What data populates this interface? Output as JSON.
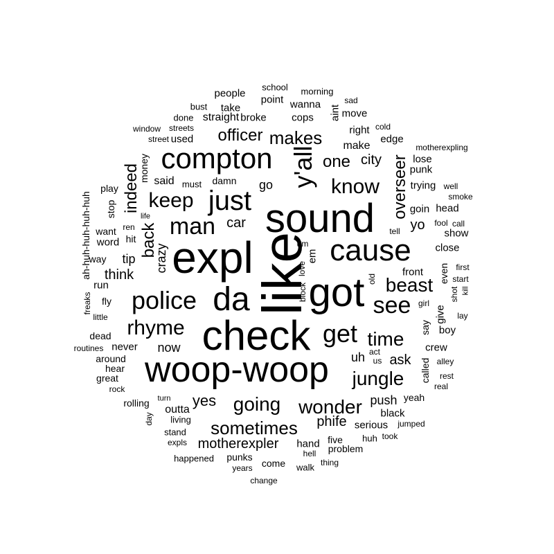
{
  "text_color": "#000000",
  "background_color": "#ffffff",
  "words": [
    {
      "text": "like",
      "rotated": true
    },
    {
      "text": "expl",
      "rotated": false
    },
    {
      "text": "sound",
      "rotated": false
    },
    {
      "text": "check",
      "rotated": false
    },
    {
      "text": "woop-woop",
      "rotated": false
    },
    {
      "text": "got",
      "rotated": false
    },
    {
      "text": "da",
      "rotated": false
    },
    {
      "text": "cause",
      "rotated": false
    },
    {
      "text": "compton",
      "rotated": false
    },
    {
      "text": "y'all",
      "rotated": true
    },
    {
      "text": "police",
      "rotated": false
    },
    {
      "text": "just",
      "rotated": false
    },
    {
      "text": "man",
      "rotated": false
    },
    {
      "text": "get",
      "rotated": false
    },
    {
      "text": "see",
      "rotated": false
    },
    {
      "text": "know",
      "rotated": false
    },
    {
      "text": "rhyme",
      "rotated": false
    },
    {
      "text": "keep",
      "rotated": false
    },
    {
      "text": "beast",
      "rotated": false
    },
    {
      "text": "time",
      "rotated": false
    },
    {
      "text": "jungle",
      "rotated": false
    },
    {
      "text": "wonder",
      "rotated": false
    },
    {
      "text": "going",
      "rotated": false
    },
    {
      "text": "sometimes",
      "rotated": false
    },
    {
      "text": "makes",
      "rotated": false
    },
    {
      "text": "officer",
      "rotated": false
    },
    {
      "text": "one",
      "rotated": false
    },
    {
      "text": "overseer",
      "rotated": true
    },
    {
      "text": "back",
      "rotated": true
    },
    {
      "text": "indeed",
      "rotated": true
    },
    {
      "text": "yes",
      "rotated": false
    },
    {
      "text": "motherexpler",
      "rotated": false
    },
    {
      "text": "phife",
      "rotated": false
    },
    {
      "text": "city",
      "rotated": false
    },
    {
      "text": "car",
      "rotated": false
    },
    {
      "text": "ask",
      "rotated": false
    },
    {
      "text": "yo",
      "rotated": false
    },
    {
      "text": "push",
      "rotated": false
    },
    {
      "text": "think",
      "rotated": false
    },
    {
      "text": "tip",
      "rotated": false
    },
    {
      "text": "crazy",
      "rotated": true
    },
    {
      "text": "uh",
      "rotated": false
    },
    {
      "text": "now",
      "rotated": false
    },
    {
      "text": "outta",
      "rotated": false
    },
    {
      "text": "go",
      "rotated": false
    },
    {
      "text": "said",
      "rotated": false
    },
    {
      "text": "make",
      "rotated": false
    },
    {
      "text": "straight",
      "rotated": false
    },
    {
      "text": "people",
      "rotated": false
    },
    {
      "text": "take",
      "rotated": false
    },
    {
      "text": "wanna",
      "rotated": false
    },
    {
      "text": "broke",
      "rotated": false
    },
    {
      "text": "cops",
      "rotated": false
    },
    {
      "text": "point",
      "rotated": false
    },
    {
      "text": "move",
      "rotated": false
    },
    {
      "text": "right",
      "rotated": false
    },
    {
      "text": "edge",
      "rotated": false
    },
    {
      "text": "used",
      "rotated": false
    },
    {
      "text": "aint",
      "rotated": true
    },
    {
      "text": "lose",
      "rotated": false
    },
    {
      "text": "punk",
      "rotated": false
    },
    {
      "text": "trying",
      "rotated": false
    },
    {
      "text": "goin",
      "rotated": false
    },
    {
      "text": "head",
      "rotated": false
    },
    {
      "text": "close",
      "rotated": false
    },
    {
      "text": "show",
      "rotated": false
    },
    {
      "text": "em",
      "rotated": true
    },
    {
      "text": "front",
      "rotated": false
    },
    {
      "text": "even",
      "rotated": true
    },
    {
      "text": "say",
      "rotated": true
    },
    {
      "text": "give",
      "rotated": true
    },
    {
      "text": "boy",
      "rotated": false
    },
    {
      "text": "crew",
      "rotated": false
    },
    {
      "text": "called",
      "rotated": true
    },
    {
      "text": "yeah",
      "rotated": false
    },
    {
      "text": "black",
      "rotated": false
    },
    {
      "text": "serious",
      "rotated": false
    },
    {
      "text": "five",
      "rotated": false
    },
    {
      "text": "hand",
      "rotated": false
    },
    {
      "text": "never",
      "rotated": false
    },
    {
      "text": "damn",
      "rotated": false
    },
    {
      "text": "fly",
      "rotated": false
    },
    {
      "text": "run",
      "rotated": false
    },
    {
      "text": "word",
      "rotated": false
    },
    {
      "text": "want",
      "rotated": false
    },
    {
      "text": "hit",
      "rotated": false
    },
    {
      "text": "way",
      "rotated": false
    },
    {
      "text": "stop",
      "rotated": true
    },
    {
      "text": "play",
      "rotated": false
    },
    {
      "text": "money",
      "rotated": true
    },
    {
      "text": "must",
      "rotated": false
    },
    {
      "text": "dead",
      "rotated": false
    },
    {
      "text": "hear",
      "rotated": false
    },
    {
      "text": "around",
      "rotated": false
    },
    {
      "text": "great",
      "rotated": false
    },
    {
      "text": "rolling",
      "rotated": false
    },
    {
      "text": "living",
      "rotated": false
    },
    {
      "text": "stand",
      "rotated": false
    },
    {
      "text": "problem",
      "rotated": false
    },
    {
      "text": "huh",
      "rotated": false
    },
    {
      "text": "punks",
      "rotated": false
    },
    {
      "text": "come",
      "rotated": false
    },
    {
      "text": "hell",
      "rotated": false
    },
    {
      "text": "ah-huh-huh-huh-huh",
      "rotated": true
    },
    {
      "text": "school",
      "rotated": false
    },
    {
      "text": "morning",
      "rotated": false
    },
    {
      "text": "sad",
      "rotated": false
    },
    {
      "text": "bust",
      "rotated": false
    },
    {
      "text": "done",
      "rotated": false
    },
    {
      "text": "streets",
      "rotated": false
    },
    {
      "text": "window",
      "rotated": false
    },
    {
      "text": "street",
      "rotated": false
    },
    {
      "text": "cold",
      "rotated": false
    },
    {
      "text": "motherexpling",
      "rotated": false
    },
    {
      "text": "well",
      "rotated": false
    },
    {
      "text": "smoke",
      "rotated": false
    },
    {
      "text": "fool",
      "rotated": false
    },
    {
      "text": "call",
      "rotated": false
    },
    {
      "text": "tell",
      "rotated": false
    },
    {
      "text": "first",
      "rotated": false
    },
    {
      "text": "start",
      "rotated": false
    },
    {
      "text": "shot",
      "rotated": true
    },
    {
      "text": "kill",
      "rotated": true
    },
    {
      "text": "girl",
      "rotated": false
    },
    {
      "text": "lay",
      "rotated": false
    },
    {
      "text": "alley",
      "rotated": false
    },
    {
      "text": "rest",
      "rotated": false
    },
    {
      "text": "real",
      "rotated": false
    },
    {
      "text": "jumped",
      "rotated": false
    },
    {
      "text": "took",
      "rotated": false
    },
    {
      "text": "thing",
      "rotated": false
    },
    {
      "text": "walk",
      "rotated": false
    },
    {
      "text": "us",
      "rotated": false
    },
    {
      "text": "act",
      "rotated": false
    },
    {
      "text": "old",
      "rotated": true
    },
    {
      "text": "block",
      "rotated": true
    },
    {
      "text": "love",
      "rotated": true
    },
    {
      "text": "um",
      "rotated": false
    },
    {
      "text": "life",
      "rotated": false
    },
    {
      "text": "ren",
      "rotated": false
    },
    {
      "text": "freaks",
      "rotated": true
    },
    {
      "text": "little",
      "rotated": false
    },
    {
      "text": "routines",
      "rotated": false
    },
    {
      "text": "rock",
      "rotated": false
    },
    {
      "text": "day",
      "rotated": true
    },
    {
      "text": "turn",
      "rotated": false
    },
    {
      "text": "expls",
      "rotated": false
    },
    {
      "text": "happened",
      "rotated": false
    },
    {
      "text": "years",
      "rotated": false
    },
    {
      "text": "change",
      "rotated": false
    }
  ]
}
